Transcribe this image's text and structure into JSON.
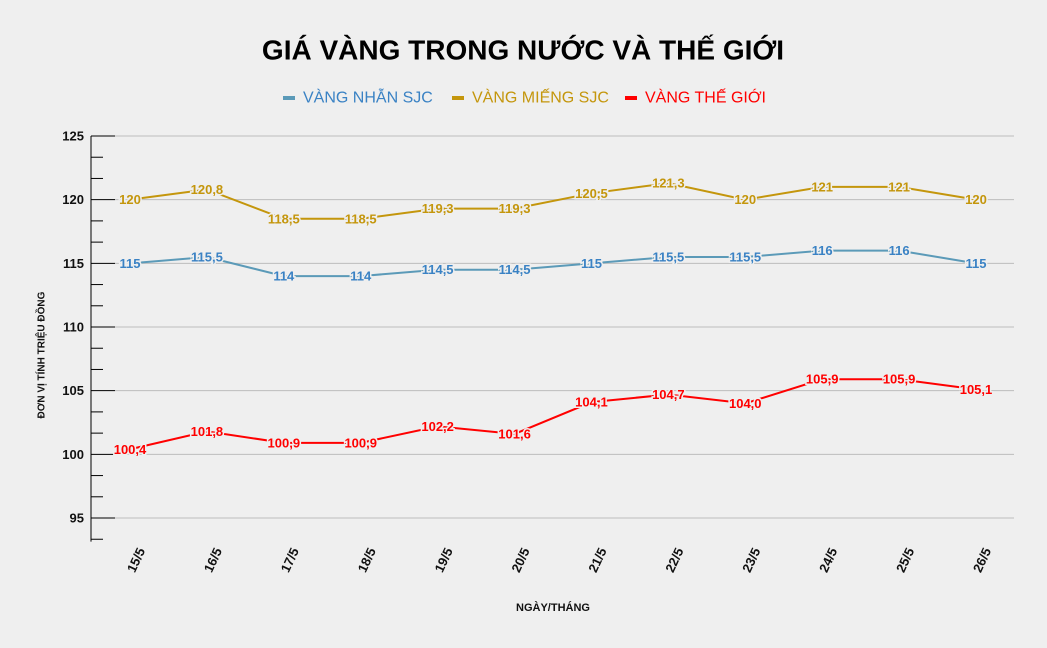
{
  "chart_data": {
    "type": "line",
    "title": "GIÁ VÀNG TRONG NƯỚC VÀ THẾ GIỚI",
    "xlabel": "NGÀY/THÁNG",
    "ylabel": "ĐƠN VỊ TÍNH TRIỆU ĐỒNG",
    "categories": [
      "15/5",
      "16/5",
      "17/5",
      "18/5",
      "19/5",
      "20/5",
      "21/5",
      "22/5",
      "23/5",
      "24/5",
      "25/5",
      "26/5"
    ],
    "ylim": [
      93.3,
      125
    ],
    "yticks": [
      95,
      100,
      105,
      110,
      115,
      120,
      125
    ],
    "grid": true,
    "legend_position": "top",
    "series": [
      {
        "name": "VÀNG NHẪN SJC",
        "color": "#5b9ab8",
        "text_color": "#3a82c4",
        "values": [
          115,
          115.5,
          114,
          114,
          114.5,
          114.5,
          115,
          115.5,
          115.5,
          116,
          116,
          115
        ],
        "labels": [
          "115",
          "115,5",
          "114",
          "114",
          "114,5",
          "114,5",
          "115",
          "115,5",
          "115,5",
          "116",
          "116",
          "115"
        ]
      },
      {
        "name": "VÀNG MIẾNG SJC",
        "color": "#c4960c",
        "text_color": "#c4960c",
        "values": [
          120,
          120.8,
          118.5,
          118.5,
          119.3,
          119.3,
          120.5,
          121.3,
          120,
          121,
          121,
          120
        ],
        "labels": [
          "120",
          "120,8",
          "118,5",
          "118,5",
          "119,3",
          "119,3",
          "120,5",
          "121,3",
          "120",
          "121",
          "121",
          "120"
        ]
      },
      {
        "name": "VÀNG THẾ GIỚI",
        "color": "#ff0000",
        "text_color": "#ff0000",
        "values": [
          100.4,
          101.8,
          100.9,
          100.9,
          102.2,
          101.6,
          104.1,
          104.7,
          104.0,
          105.9,
          105.9,
          105.1
        ],
        "labels": [
          "100,4",
          "101,8",
          "100,9",
          "100,9",
          "102,2",
          "101,6",
          "104,1",
          "104,7",
          "104,0",
          "105,9",
          "105,9",
          "105,1"
        ]
      }
    ]
  }
}
